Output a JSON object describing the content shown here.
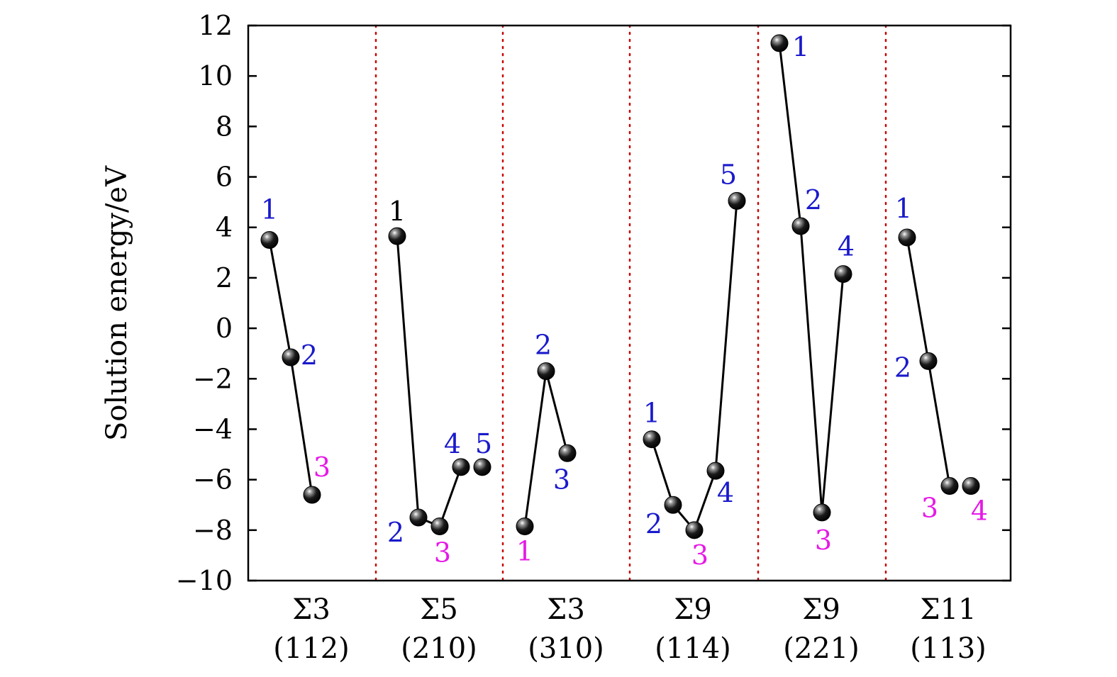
{
  "chart_data": {
    "type": "scatter",
    "ylabel": "Solution energy/eV",
    "ylim": [
      -10,
      12
    ],
    "yticks": [
      12,
      10,
      8,
      6,
      4,
      2,
      0,
      -2,
      -4,
      -6,
      -8,
      -10
    ],
    "ytick_labels": [
      "12",
      "10",
      "8",
      "6",
      "4",
      "2",
      "0",
      "−2",
      "−4",
      "−6",
      "−8",
      "−10"
    ],
    "grid": false,
    "separator_style": "red dotted vertical lines between groups",
    "colors": {
      "blue": "#1a1acc",
      "magenta": "#e619e6",
      "black": "#000000",
      "separator": "#cc0000"
    },
    "groups": [
      {
        "sigma": "Σ3",
        "plane": "(112)",
        "points": [
          {
            "label": "1",
            "y": 3.5,
            "color": "blue",
            "lines": [
              1
            ]
          },
          {
            "label": "2",
            "y": -1.15,
            "color": "blue",
            "lines": [
              2
            ]
          },
          {
            "label": "3",
            "y": -6.6,
            "color": "magenta"
          }
        ]
      },
      {
        "sigma": "Σ5",
        "plane": "(210)",
        "points": [
          {
            "label": "1",
            "y": 3.65,
            "color": "black",
            "lines": [
              1
            ]
          },
          {
            "label": "2",
            "y": -7.5,
            "color": "blue",
            "lines": [
              2
            ]
          },
          {
            "label": "3",
            "y": -7.85,
            "color": "magenta",
            "lines": [
              3
            ]
          },
          {
            "label": "4",
            "y": -5.5,
            "color": "blue"
          },
          {
            "label": "5",
            "y": -5.5,
            "color": "blue"
          }
        ]
      },
      {
        "sigma": "Σ3",
        "plane": "(310)",
        "points": [
          {
            "label": "1",
            "y": -7.85,
            "color": "magenta",
            "lines": [
              1
            ]
          },
          {
            "label": "2",
            "y": -1.7,
            "color": "blue",
            "lines": [
              2
            ]
          },
          {
            "label": "3",
            "y": -4.95,
            "color": "blue"
          }
        ]
      },
      {
        "sigma": "Σ9",
        "plane": "(114)",
        "points": [
          {
            "label": "1",
            "y": -4.4,
            "color": "blue",
            "lines": [
              1
            ]
          },
          {
            "label": "2",
            "y": -7.0,
            "color": "blue",
            "lines": [
              2
            ]
          },
          {
            "label": "3",
            "y": -8.0,
            "color": "magenta",
            "lines": [
              3
            ]
          },
          {
            "label": "4",
            "y": -5.65,
            "color": "blue",
            "lines": [
              4
            ]
          },
          {
            "label": "5",
            "y": 5.05,
            "color": "blue"
          }
        ]
      },
      {
        "sigma": "Σ9",
        "plane": "(221)",
        "points": [
          {
            "label": "1",
            "y": 11.3,
            "color": "blue",
            "lines": [
              1
            ]
          },
          {
            "label": "2",
            "y": 4.05,
            "color": "blue",
            "lines": [
              2
            ]
          },
          {
            "label": "3",
            "y": -7.3,
            "color": "magenta",
            "lines": [
              3
            ]
          },
          {
            "label": "4",
            "y": 2.15,
            "color": "blue"
          }
        ]
      },
      {
        "sigma": "Σ11",
        "plane": "(113)",
        "points": [
          {
            "label": "1",
            "y": 3.6,
            "color": "blue",
            "lines": [
              1
            ]
          },
          {
            "label": "2",
            "y": -1.3,
            "color": "blue",
            "lines": [
              2
            ]
          },
          {
            "label": "3",
            "y": -6.25,
            "color": "magenta"
          },
          {
            "label": "4",
            "y": -6.25,
            "color": "magenta"
          }
        ]
      }
    ]
  }
}
